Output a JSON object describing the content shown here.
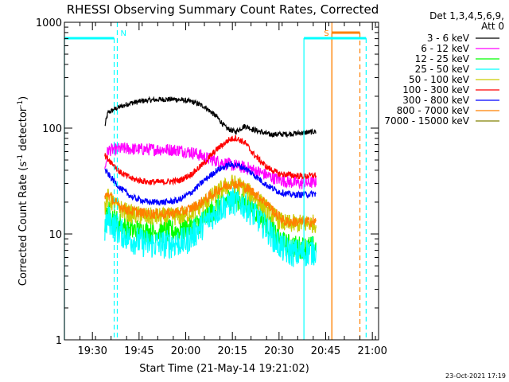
{
  "chart_data": {
    "type": "line",
    "title": "RHESSI Observing Summary Count Rates, Corrected",
    "xlabel": "Start Time (21-May-14 19:21:02)",
    "ylabel": "Corrected Count Rate (s",
    "ylabel_sup1": "-1",
    "ylabel_mid": " detector",
    "ylabel_sup2": "-1",
    "ylabel_end": ")",
    "y_scale": "log",
    "ylim": [
      1,
      1000
    ],
    "y_ticks": [
      {
        "value": 1,
        "label": "1"
      },
      {
        "value": 10,
        "label": "10"
      },
      {
        "value": 100,
        "label": "100"
      },
      {
        "value": 1000,
        "label": "1000"
      }
    ],
    "x_range": [
      "19:21",
      "21:02"
    ],
    "x_ticks": [
      {
        "value": "19:30",
        "label": "19:30"
      },
      {
        "value": "19:45",
        "label": "19:45"
      },
      {
        "value": "20:00",
        "label": "20:00"
      },
      {
        "value": "20:15",
        "label": "20:15"
      },
      {
        "value": "20:30",
        "label": "20:30"
      },
      {
        "value": "20:45",
        "label": "20:45"
      },
      {
        "value": "21:00",
        "label": "21:00"
      }
    ],
    "legend_header": [
      "Det 1,3,4,5,6,9,",
      "Att 0"
    ],
    "legend_position": "right",
    "series": [
      {
        "name": "3 - 6 keV",
        "color": "#000000",
        "points": [
          [
            "19:34",
            105
          ],
          [
            "19:35",
            140
          ],
          [
            "19:38",
            155
          ],
          [
            "19:42",
            172
          ],
          [
            "19:47",
            182
          ],
          [
            "19:52",
            187
          ],
          [
            "19:57",
            187
          ],
          [
            "20:02",
            178
          ],
          [
            "20:06",
            160
          ],
          [
            "20:10",
            128
          ],
          [
            "20:13",
            100
          ],
          [
            "20:16",
            92
          ],
          [
            "20:19",
            105
          ],
          [
            "20:22",
            96
          ],
          [
            "20:27",
            87
          ],
          [
            "20:33",
            88
          ],
          [
            "20:39",
            91
          ],
          [
            "20:42",
            93
          ]
        ]
      },
      {
        "name": "6 - 12 keV",
        "color": "#ff00ff",
        "points": [
          [
            "19:34",
            40
          ],
          [
            "19:35",
            62
          ],
          [
            "19:40",
            64
          ],
          [
            "19:46",
            63
          ],
          [
            "19:52",
            63
          ],
          [
            "19:58",
            62
          ],
          [
            "20:03",
            58
          ],
          [
            "20:07",
            52
          ],
          [
            "20:12",
            47
          ],
          [
            "20:16",
            44
          ],
          [
            "20:20",
            42
          ],
          [
            "20:24",
            38
          ],
          [
            "20:28",
            34
          ],
          [
            "20:33",
            31
          ],
          [
            "20:37",
            30
          ],
          [
            "20:42",
            31
          ]
        ]
      },
      {
        "name": "12 - 25 keV",
        "color": "#00ff00",
        "points": [
          [
            "19:34",
            13
          ],
          [
            "19:35",
            16
          ],
          [
            "19:38",
            13
          ],
          [
            "19:42",
            11
          ],
          [
            "19:48",
            10.5
          ],
          [
            "19:54",
            10.5
          ],
          [
            "20:00",
            11
          ],
          [
            "20:04",
            12.5
          ],
          [
            "20:08",
            16
          ],
          [
            "20:12",
            20
          ],
          [
            "20:15",
            22
          ],
          [
            "20:18",
            21
          ],
          [
            "20:22",
            17
          ],
          [
            "20:26",
            13
          ],
          [
            "20:29",
            9.5
          ],
          [
            "20:32",
            8
          ],
          [
            "20:36",
            7.5
          ],
          [
            "20:42",
            7.5
          ]
        ]
      },
      {
        "name": "25 - 50 keV",
        "color": "#00ffff",
        "points": [
          [
            "19:34",
            11
          ],
          [
            "19:35",
            14
          ],
          [
            "19:38",
            11
          ],
          [
            "19:42",
            9
          ],
          [
            "19:48",
            8
          ],
          [
            "19:54",
            8
          ],
          [
            "20:00",
            8.5
          ],
          [
            "20:04",
            11
          ],
          [
            "20:08",
            14.5
          ],
          [
            "20:12",
            18.5
          ],
          [
            "20:15",
            20.5
          ],
          [
            "20:18",
            19.5
          ],
          [
            "20:22",
            15.5
          ],
          [
            "20:26",
            11.5
          ],
          [
            "20:29",
            8.5
          ],
          [
            "20:32",
            7
          ],
          [
            "20:36",
            6.5
          ],
          [
            "20:42",
            7
          ]
        ]
      },
      {
        "name": "50 - 100 keV",
        "color": "#cccc00",
        "points": [
          [
            "19:34",
            18
          ],
          [
            "19:35",
            22
          ],
          [
            "19:38",
            18
          ],
          [
            "19:42",
            15.5
          ],
          [
            "19:48",
            14.5
          ],
          [
            "19:54",
            14.5
          ],
          [
            "20:00",
            15
          ],
          [
            "20:04",
            17.5
          ],
          [
            "20:08",
            22
          ],
          [
            "20:12",
            27
          ],
          [
            "20:15",
            30
          ],
          [
            "20:18",
            28
          ],
          [
            "20:22",
            22.5
          ],
          [
            "20:26",
            17.5
          ],
          [
            "20:29",
            14
          ],
          [
            "20:32",
            12.5
          ],
          [
            "20:36",
            12.5
          ],
          [
            "20:42",
            12.5
          ]
        ]
      },
      {
        "name": "100 - 300 keV",
        "color": "#ff0000",
        "points": [
          [
            "19:34",
            55
          ],
          [
            "19:36",
            48
          ],
          [
            "19:39",
            38
          ],
          [
            "19:43",
            33
          ],
          [
            "19:48",
            31
          ],
          [
            "19:53",
            31
          ],
          [
            "19:58",
            32
          ],
          [
            "20:02",
            37
          ],
          [
            "20:06",
            47
          ],
          [
            "20:10",
            63
          ],
          [
            "20:14",
            78
          ],
          [
            "20:16",
            81
          ],
          [
            "20:19",
            73
          ],
          [
            "20:22",
            56
          ],
          [
            "20:26",
            43
          ],
          [
            "20:30",
            37
          ],
          [
            "20:34",
            36
          ],
          [
            "20:38",
            35
          ],
          [
            "20:42",
            36
          ]
        ]
      },
      {
        "name": "300 - 800 keV",
        "color": "#0000ff",
        "points": [
          [
            "19:34",
            40
          ],
          [
            "19:36",
            34
          ],
          [
            "19:39",
            27
          ],
          [
            "19:43",
            22
          ],
          [
            "19:48",
            20
          ],
          [
            "19:54",
            20
          ],
          [
            "19:58",
            21
          ],
          [
            "20:02",
            25
          ],
          [
            "20:06",
            32
          ],
          [
            "20:10",
            40
          ],
          [
            "20:14",
            45
          ],
          [
            "20:16",
            45
          ],
          [
            "20:19",
            42
          ],
          [
            "20:22",
            36
          ],
          [
            "20:26",
            29
          ],
          [
            "20:30",
            25
          ],
          [
            "20:34",
            23.5
          ],
          [
            "20:38",
            23.5
          ],
          [
            "20:42",
            24
          ]
        ]
      },
      {
        "name": "800 - 7000 keV",
        "color": "#ff8000",
        "points": [
          [
            "19:34",
            22
          ],
          [
            "19:35",
            24
          ],
          [
            "19:38",
            19
          ],
          [
            "19:42",
            16.5
          ],
          [
            "19:48",
            15.5
          ],
          [
            "19:54",
            15.5
          ],
          [
            "20:00",
            16.5
          ],
          [
            "20:04",
            19
          ],
          [
            "20:08",
            23
          ],
          [
            "20:12",
            28
          ],
          [
            "20:15",
            30
          ],
          [
            "20:18",
            29
          ],
          [
            "20:22",
            24.5
          ],
          [
            "20:26",
            19.5
          ],
          [
            "20:29",
            15.5
          ],
          [
            "20:32",
            13
          ],
          [
            "20:36",
            13
          ],
          [
            "20:42",
            13
          ]
        ]
      },
      {
        "name": "7000 - 15000 keV",
        "color": "#808000",
        "points": []
      }
    ],
    "markers": [
      {
        "label": "N",
        "color": "#00ffff",
        "time": "19:38",
        "bar_from": "19:21",
        "bar_to": "19:37"
      },
      {
        "label": "S",
        "color": "#ff8000",
        "time": "20:47",
        "bar_from": "20:47",
        "bar_to": "20:56"
      },
      {
        "color": "#00ffff",
        "bar_from": "20:38",
        "bar_to": "20:58"
      }
    ],
    "timestamp": "23-Oct-2021 17:19"
  }
}
